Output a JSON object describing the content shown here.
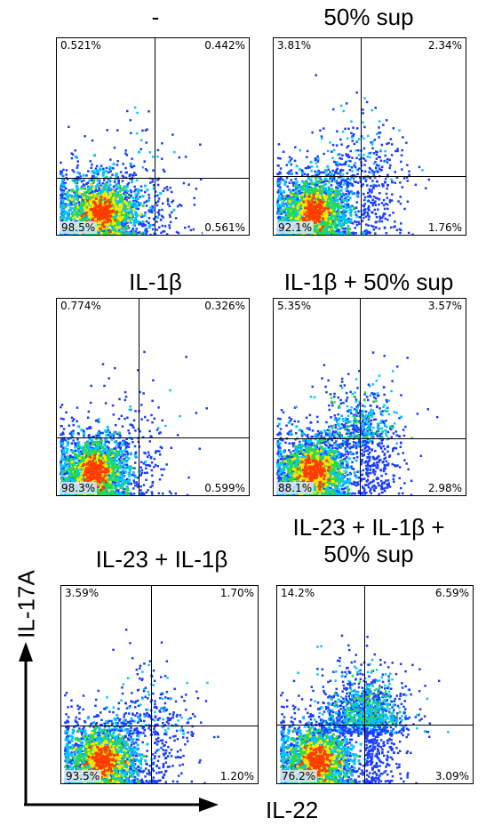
{
  "chart_data": {
    "type": "scatter",
    "xlabel": "IL-22",
    "ylabel": "IL-17A",
    "panels": [
      {
        "title": "-",
        "quadrants": {
          "ul": "0.521%",
          "ur": "0.442%",
          "ll": "98.5%",
          "lr": "0.561%"
        },
        "ul": 0.521,
        "ur": 0.442,
        "ll": 98.5,
        "lr": 0.561
      },
      {
        "title": "50% sup",
        "quadrants": {
          "ul": "3.81%",
          "ur": "2.34%",
          "ll": "92.1%",
          "lr": "1.76%"
        },
        "ul": 3.81,
        "ur": 2.34,
        "ll": 92.1,
        "lr": 1.76
      },
      {
        "title": "IL-1β",
        "quadrants": {
          "ul": "0.774%",
          "ur": "0.326%",
          "ll": "98.3%",
          "lr": "0.599%"
        },
        "ul": 0.774,
        "ur": 0.326,
        "ll": 98.3,
        "lr": 0.599
      },
      {
        "title": "IL-1β + 50% sup",
        "quadrants": {
          "ul": "5.35%",
          "ur": "3.57%",
          "ll": "88.1%",
          "lr": "2.98%"
        },
        "ul": 5.35,
        "ur": 3.57,
        "ll": 88.1,
        "lr": 2.98
      },
      {
        "title": "IL-23 + IL-1β",
        "quadrants": {
          "ul": "3.59%",
          "ur": "1.70%",
          "ll": "93.5%",
          "lr": "1.20%"
        },
        "ul": 3.59,
        "ur": 1.7,
        "ll": 93.5,
        "lr": 1.2
      },
      {
        "title": "IL-23 + IL-1β + 50% sup",
        "quadrants": {
          "ul": "14.2%",
          "ur": "6.59%",
          "ll": "76.2%",
          "lr": "3.09%"
        },
        "ul": 14.2,
        "ur": 6.59,
        "ll": 76.2,
        "lr": 3.09
      }
    ]
  },
  "colors": {
    "sparse": "#1a3cff",
    "mid": "#00c8ff",
    "dense": "#32dc32",
    "denser": "#ffe600",
    "core": "#ff3c00"
  }
}
